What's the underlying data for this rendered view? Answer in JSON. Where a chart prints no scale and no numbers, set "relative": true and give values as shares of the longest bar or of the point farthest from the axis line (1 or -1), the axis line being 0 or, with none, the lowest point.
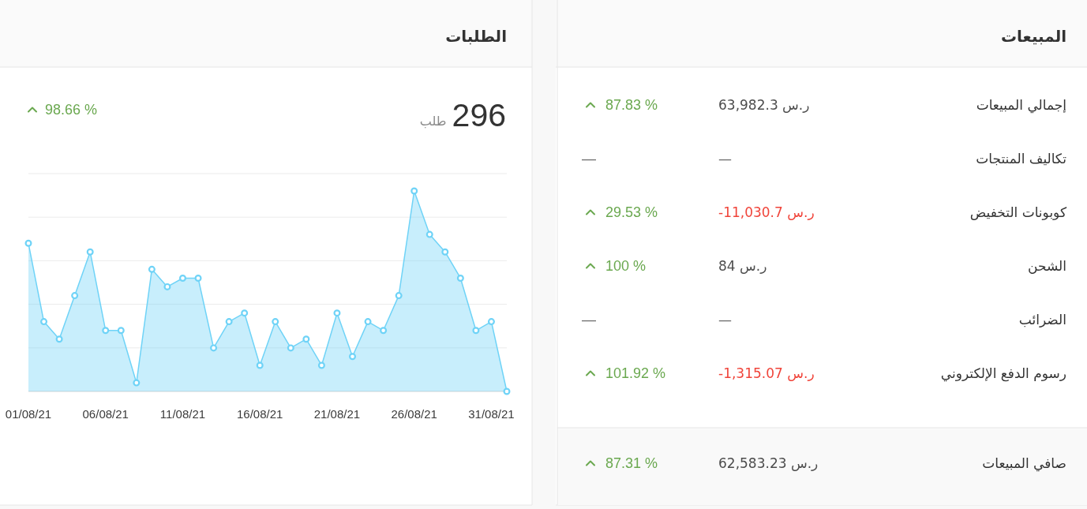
{
  "chart_data": [
    {
      "type": "other",
      "title": "المبيعات",
      "annotations": [
        "إجمالي المبيعات",
        "63,982.3 ر.س",
        "87.83 %",
        "تكاليف المنتجات",
        "—",
        "—",
        "كوبونات التخفيض",
        "-11,030.7 ر.س",
        "29.53 %",
        "الشحن",
        "84 ر.س",
        "100 %",
        "الضرائب",
        "—",
        "—",
        "رسوم الدفع الإلكتروني",
        "-1,315.07 ر.س",
        "101.92 %",
        "صافي المبيعات",
        "62,583.23 ر.س",
        "87.31 %"
      ]
    },
    {
      "type": "area",
      "title": "الطلبات",
      "annotations": [
        "296",
        "طلب",
        "98.66 %"
      ],
      "categories": [
        "01/08/21",
        null,
        null,
        null,
        null,
        "06/08/21",
        null,
        null,
        null,
        null,
        "11/08/21",
        null,
        null,
        null,
        null,
        "16/08/21",
        null,
        null,
        null,
        null,
        "21/08/21",
        null,
        null,
        null,
        null,
        "26/08/21",
        null,
        null,
        null,
        null,
        "31/08/21",
        null
      ],
      "values": [
        0.739,
        0.348,
        0.261,
        0.478,
        0.696,
        0.304,
        0.304,
        0.043,
        0.609,
        0.522,
        0.565,
        0.565,
        0.217,
        0.348,
        0.391,
        0.13,
        0.348,
        0.217,
        0.261,
        0.13,
        0.391,
        0.174,
        0.348,
        0.304,
        0.478,
        1,
        0.783,
        0.696,
        0.565,
        0.304,
        0.348,
        0
      ],
      "relative": true,
      "color": "#6fd3f7",
      "marker": "circle",
      "grid": "y"
    }
  ]
}
